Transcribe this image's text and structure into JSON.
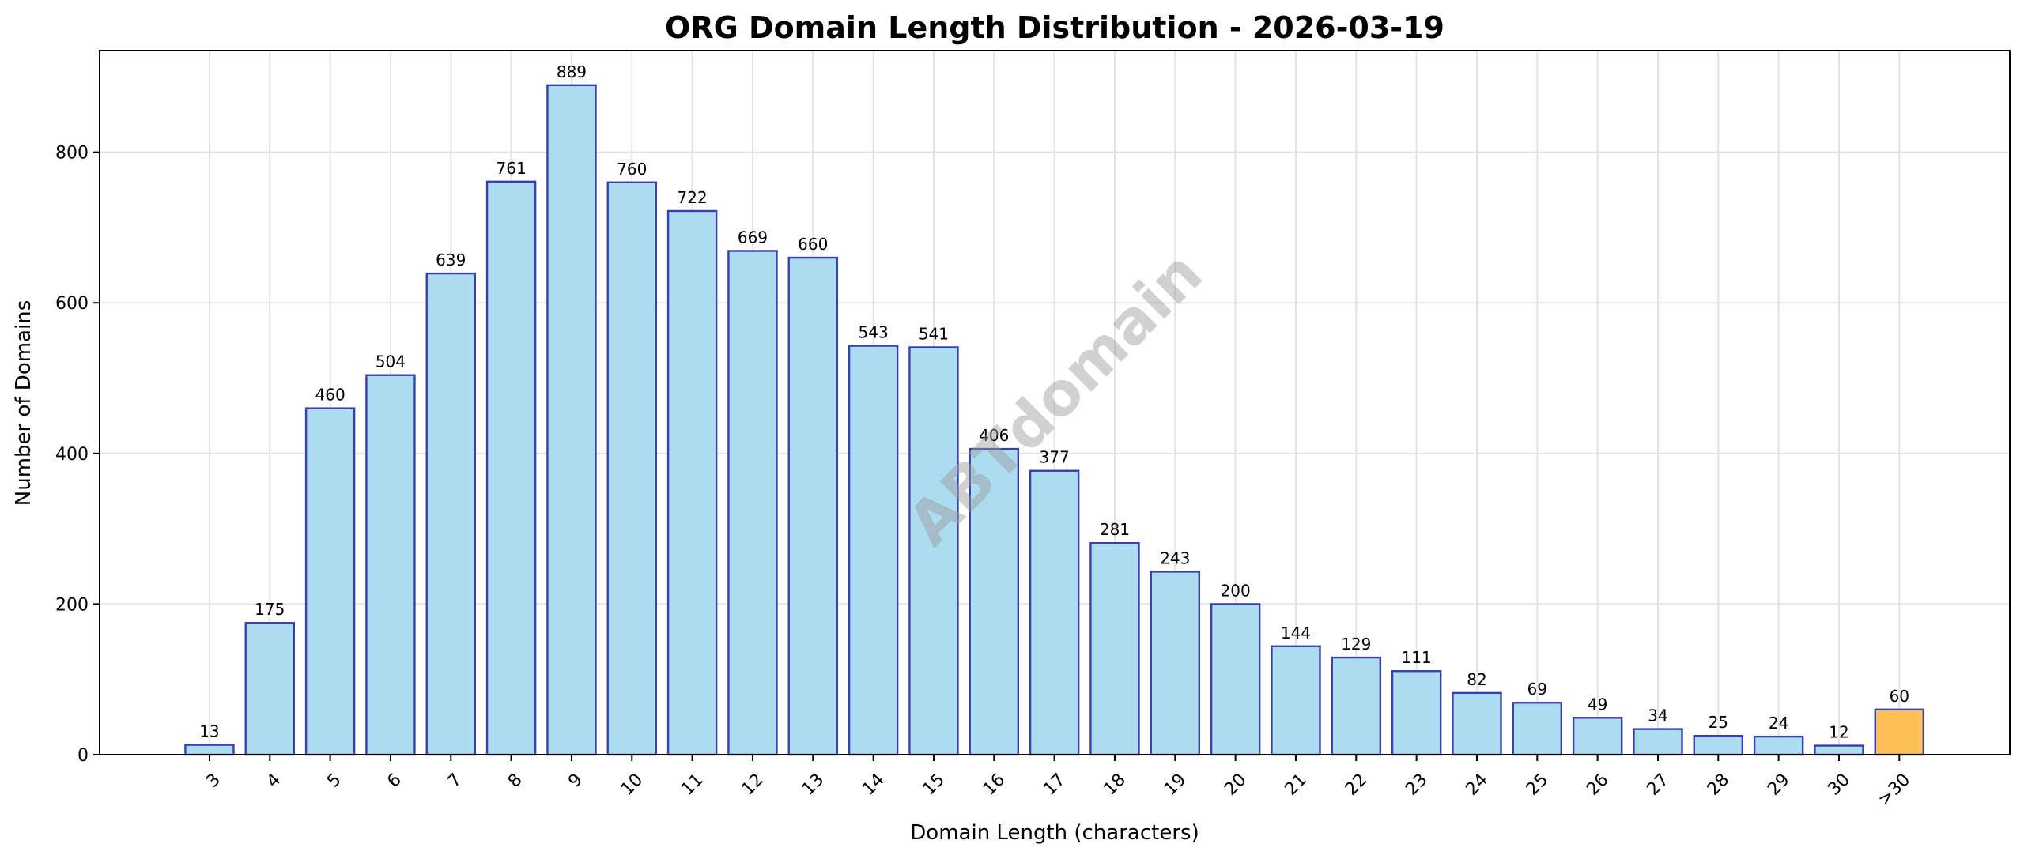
{
  "chart_data": {
    "type": "bar",
    "title": "ORG Domain Length Distribution - 2026-03-19",
    "xlabel": "Domain Length (characters)",
    "ylabel": "Number of Domains",
    "categories": [
      "3",
      "4",
      "5",
      "6",
      "7",
      "8",
      "9",
      "10",
      "11",
      "12",
      "13",
      "14",
      "15",
      "16",
      "17",
      "18",
      "19",
      "20",
      "21",
      "22",
      "23",
      "24",
      "25",
      "26",
      "27",
      "28",
      "29",
      "30",
      ">30"
    ],
    "values": [
      13,
      175,
      460,
      504,
      639,
      761,
      889,
      760,
      722,
      669,
      660,
      543,
      541,
      406,
      377,
      281,
      243,
      200,
      144,
      129,
      111,
      82,
      69,
      49,
      34,
      25,
      24,
      12,
      60
    ],
    "ylim": [
      0,
      935
    ],
    "yticks": [
      0,
      200,
      400,
      600,
      800
    ],
    "grid": true,
    "data_labels": true,
    "colors": {
      "bar": "#a8daee",
      "highlight_bar": "#ffbe4e",
      "bar_edge": "#3a3fb0",
      "grid": "#e3e3e3"
    },
    "highlighted_category": ">30",
    "watermark": "ABTdomain"
  }
}
